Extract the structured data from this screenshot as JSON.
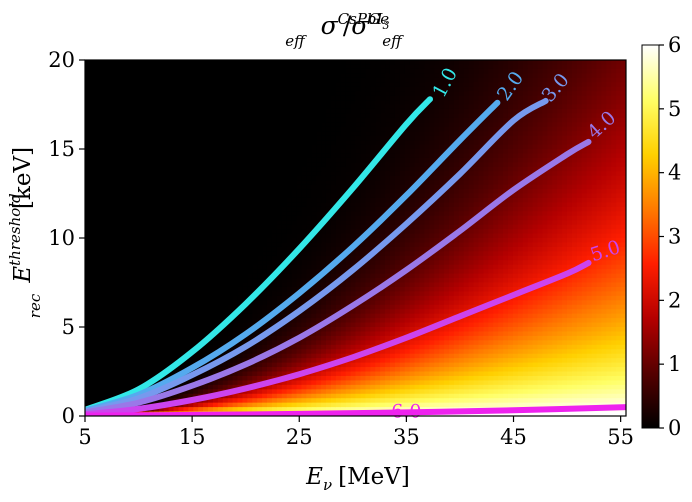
{
  "chart_data": {
    "type": "heatmap",
    "title": {
      "base1": "σ",
      "sup1": "CsPbI",
      "sup1_sub": "3",
      "sub1": "eff",
      "slash": "/",
      "base2": "σ",
      "sup2": "Ge",
      "sub2": "eff"
    },
    "xlabel": {
      "base": "E",
      "sub": "ν",
      "unit": "[MeV]"
    },
    "ylabel": {
      "base": "E",
      "sup": "threshold",
      "sub": "rec",
      "unit": "[keV]"
    },
    "xlim": [
      5,
      55.5
    ],
    "ylim": [
      0,
      20
    ],
    "x_ticks": [
      5,
      15,
      25,
      35,
      45,
      55
    ],
    "y_ticks": [
      0,
      5,
      10,
      15,
      20
    ],
    "colorbar": {
      "range": [
        0,
        6
      ],
      "ticks": [
        0,
        1,
        2,
        3,
        4,
        5,
        6
      ],
      "colormap": "hot",
      "colors": [
        "#000000",
        "#550000",
        "#b40000",
        "#ff1e00",
        "#ff7a00",
        "#ffd000",
        "#ffff66",
        "#ffffff"
      ]
    },
    "series": [
      {
        "name": "1.0",
        "color": "#33e8e8",
        "points": [
          [
            5,
            0.35
          ],
          [
            10,
            1.5
          ],
          [
            15,
            3.6
          ],
          [
            20,
            6.3
          ],
          [
            25,
            9.4
          ],
          [
            30,
            12.8
          ],
          [
            35,
            16.4
          ],
          [
            37.2,
            17.8
          ]
        ]
      },
      {
        "name": "2.0",
        "color": "#55aaee",
        "points": [
          [
            5,
            0.3
          ],
          [
            10,
            1.2
          ],
          [
            15,
            2.7
          ],
          [
            20,
            4.6
          ],
          [
            25,
            6.9
          ],
          [
            30,
            9.5
          ],
          [
            35,
            12.4
          ],
          [
            40,
            15.5
          ],
          [
            43.5,
            17.6
          ]
        ]
      },
      {
        "name": "3.0",
        "color": "#7799ee",
        "points": [
          [
            5,
            0.25
          ],
          [
            10,
            1.0
          ],
          [
            15,
            2.3
          ],
          [
            20,
            3.9
          ],
          [
            25,
            5.9
          ],
          [
            30,
            8.2
          ],
          [
            35,
            10.8
          ],
          [
            40,
            13.6
          ],
          [
            45,
            16.6
          ],
          [
            48,
            17.7
          ]
        ]
      },
      {
        "name": "4.0",
        "color": "#9a78e8",
        "points": [
          [
            5,
            0.2
          ],
          [
            10,
            0.75
          ],
          [
            15,
            1.7
          ],
          [
            20,
            2.9
          ],
          [
            25,
            4.4
          ],
          [
            30,
            6.2
          ],
          [
            35,
            8.2
          ],
          [
            40,
            10.4
          ],
          [
            45,
            12.7
          ],
          [
            50,
            14.7
          ],
          [
            52,
            15.4
          ]
        ]
      },
      {
        "name": "5.0",
        "color": "#cc44ee",
        "points": [
          [
            5,
            0.1
          ],
          [
            10,
            0.4
          ],
          [
            15,
            0.9
          ],
          [
            20,
            1.55
          ],
          [
            25,
            2.35
          ],
          [
            30,
            3.3
          ],
          [
            35,
            4.4
          ],
          [
            40,
            5.6
          ],
          [
            45,
            6.8
          ],
          [
            50,
            8.0
          ],
          [
            52,
            8.6
          ]
        ]
      },
      {
        "name": "6.0",
        "color": "#ee22ee",
        "points": [
          [
            5,
            0.02
          ],
          [
            15,
            0.06
          ],
          [
            25,
            0.12
          ],
          [
            35,
            0.2
          ],
          [
            45,
            0.32
          ],
          [
            55.5,
            0.5
          ]
        ]
      }
    ],
    "contour_labels": [
      {
        "text": "1.0",
        "x": 38.7,
        "y": 18.7,
        "angle": -62,
        "color": "#33e8e8"
      },
      {
        "text": "2.0",
        "x": 44.8,
        "y": 18.5,
        "angle": -55,
        "color": "#55aaee"
      },
      {
        "text": "3.0",
        "x": 49.0,
        "y": 18.4,
        "angle": -50,
        "color": "#7799ee"
      },
      {
        "text": "4.0",
        "x": 53.3,
        "y": 16.3,
        "angle": -42,
        "color": "#9a78e8"
      },
      {
        "text": "5.0",
        "x": 53.6,
        "y": 9.2,
        "angle": -18,
        "color": "#cc44ee"
      },
      {
        "text": "6.0",
        "x": 35.0,
        "y": 0.2,
        "angle": 0,
        "color": "#ee22ee"
      }
    ]
  }
}
